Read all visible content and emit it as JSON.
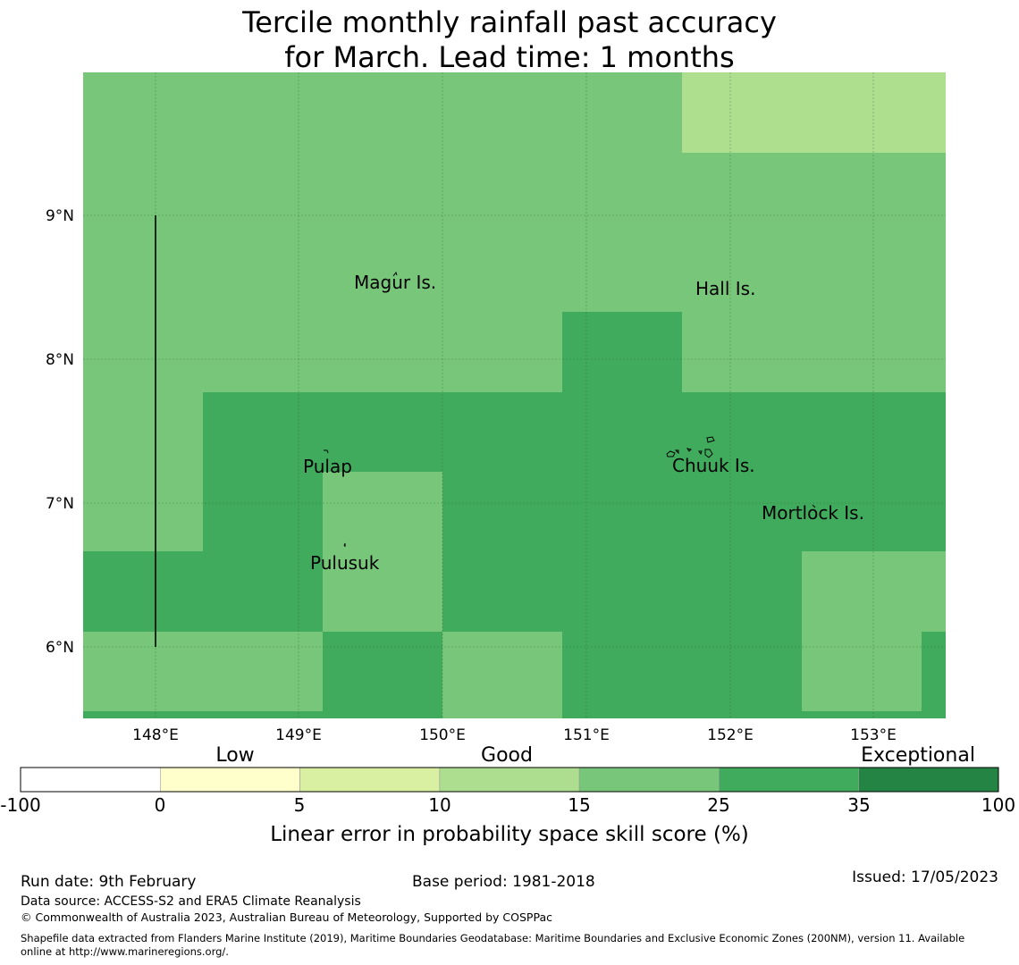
{
  "title": {
    "line1": "Tercile monthly rainfall past accuracy",
    "line2": "for March. Lead time: 1 months"
  },
  "map": {
    "x_ticks": [
      "148°E",
      "149°E",
      "150°E",
      "151°E",
      "152°E",
      "153°E"
    ],
    "y_ticks": [
      "9°N",
      "8°N",
      "7°N",
      "6°N"
    ],
    "places": [
      "Magur Is.",
      "Hall Is.",
      "Pulap",
      "Chuuk Is.",
      "Mortlock Is.",
      "Pulusuk"
    ],
    "skill_colors": {
      "light": "#addf8e",
      "medium": "#78c679",
      "high": "#41ab5d"
    }
  },
  "legend": {
    "category_labels": [
      "Low",
      "Good",
      "Exceptional"
    ],
    "boundaries": [
      "-100",
      "0",
      "5",
      "10",
      "15",
      "25",
      "35",
      "100"
    ],
    "colors": [
      "#ffffff",
      "#ffffcc",
      "#d9f0a3",
      "#addd8e",
      "#78c679",
      "#41ab5d",
      "#238443"
    ],
    "axis_label": "Linear error in probability space skill score (%)"
  },
  "footer": {
    "run_date": "Run date: 9th February",
    "base_period": "Base period: 1981-2018",
    "issued": "Issued: 17/05/2023",
    "data_source": "Data source: ACCESS-S2 and ERA5 Climate Reanalysis",
    "copyright": "© Commonwealth of Australia 2023, Australian Bureau of Meteorology, Supported by COSPPac",
    "shapefile_line1": "Shapefile data extracted from Flanders Marine Institute (2019), Maritime Boundaries Geodatabase: Maritime Boundaries and Exclusive Economic Zones (200NM), version 11. Available",
    "shapefile_line2": "online at http://www.marineregions.org/."
  }
}
